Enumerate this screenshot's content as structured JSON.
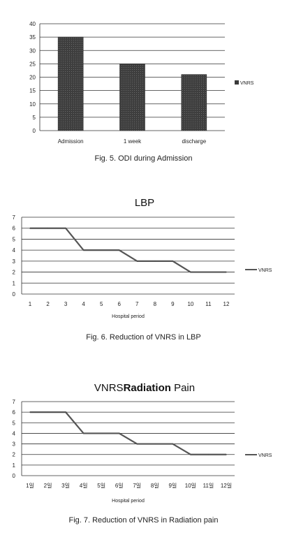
{
  "chart_data": [
    {
      "type": "bar",
      "categories": [
        "Admission",
        "1 week",
        "discharge"
      ],
      "series": [
        {
          "name": "VNRS",
          "values": [
            35,
            25,
            21
          ]
        }
      ],
      "ylim": [
        0,
        40
      ],
      "yticks": [
        0,
        5,
        10,
        15,
        20,
        25,
        30,
        35,
        40
      ],
      "grid": true,
      "legend": "right",
      "bar_color": "#4a4a4a",
      "caption": "Fig. 5. ODI during Admission"
    },
    {
      "type": "line",
      "title": "LBP",
      "x": [
        "1",
        "2",
        "3",
        "4",
        "5",
        "6",
        "7",
        "8",
        "9",
        "10",
        "11",
        "12"
      ],
      "series": [
        {
          "name": "VNRS",
          "values": [
            6,
            6,
            6,
            4,
            4,
            4,
            3,
            3,
            3,
            2,
            2,
            2
          ]
        }
      ],
      "xlabel": "Hospital period",
      "ylim": [
        0,
        7
      ],
      "yticks": [
        0,
        1,
        2,
        3,
        4,
        5,
        6,
        7
      ],
      "grid": true,
      "legend": "right",
      "line_color": "#555555",
      "caption": "Fig. 6. Reduction of VNRS in LBP"
    },
    {
      "type": "line",
      "title_parts": [
        "VNRS",
        "Radiation",
        " Pain"
      ],
      "x": [
        "1일",
        "2일",
        "3일",
        "4일",
        "5일",
        "6일",
        "7일",
        "8일",
        "9일",
        "10일",
        "11일",
        "12일"
      ],
      "series": [
        {
          "name": "VNRS",
          "values": [
            6,
            6,
            6,
            4,
            4,
            4,
            3,
            3,
            3,
            2,
            2,
            2
          ]
        }
      ],
      "xlabel": "Hospital period",
      "ylim": [
        0,
        7
      ],
      "yticks": [
        0,
        1,
        2,
        3,
        4,
        5,
        6,
        7
      ],
      "grid": true,
      "legend": "right",
      "line_color": "#555555",
      "caption": "Fig. 7. Reduction of VNRS in Radiation pain"
    }
  ]
}
